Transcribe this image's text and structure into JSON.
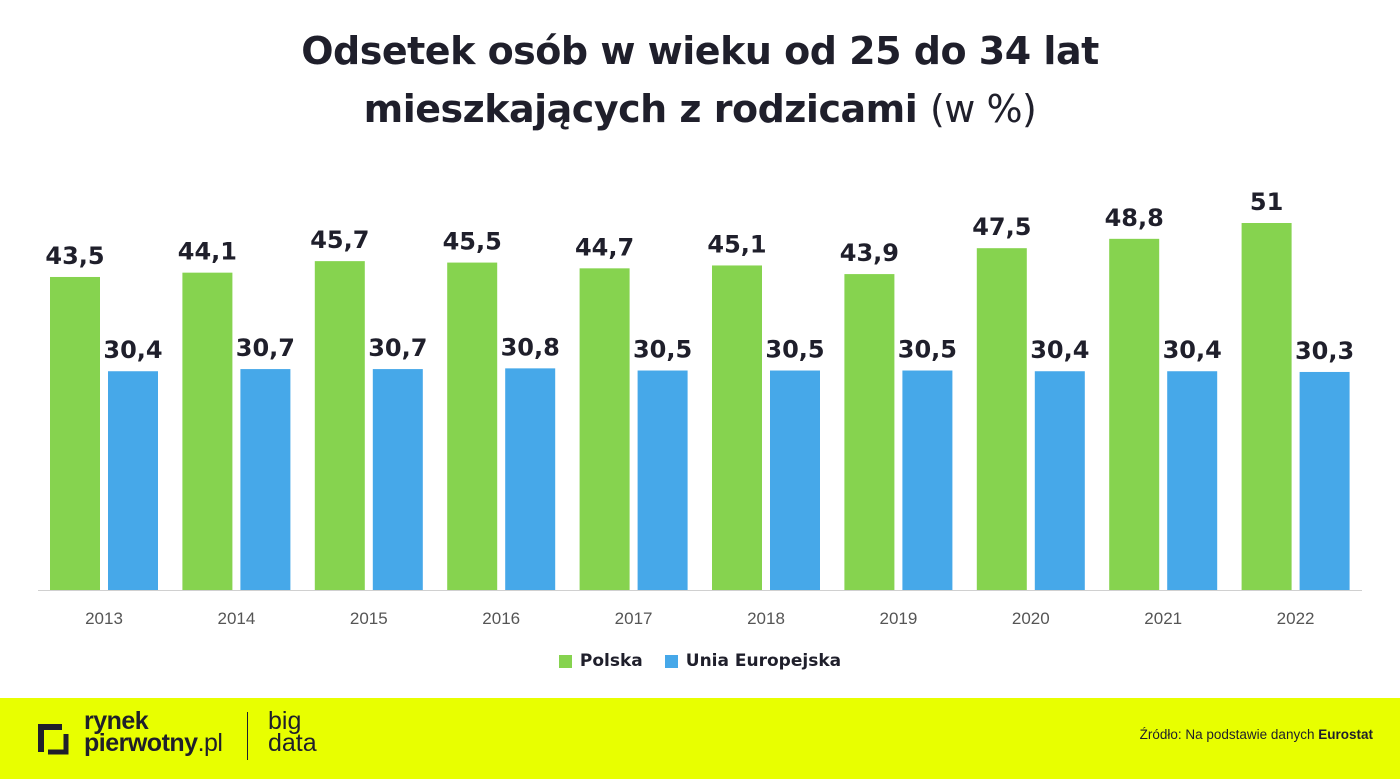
{
  "title": {
    "line1": "Odsetek osób w wieku od 25 do 34 lat",
    "line2": "mieszkających z rodzicami",
    "unit": "(w %)"
  },
  "chart_data": {
    "type": "bar",
    "categories": [
      "2013",
      "2014",
      "2015",
      "2016",
      "2017",
      "2018",
      "2019",
      "2020",
      "2021",
      "2022"
    ],
    "series": [
      {
        "name": "Polska",
        "color": "#86d34f",
        "values": [
          43.5,
          44.1,
          45.7,
          45.5,
          44.7,
          45.1,
          43.9,
          47.5,
          48.8,
          51
        ],
        "labels": [
          "43,5",
          "44,1",
          "45,7",
          "45,5",
          "44,7",
          "45,1",
          "43,9",
          "47,5",
          "48,8",
          "51"
        ]
      },
      {
        "name": "Unia Europejska",
        "color": "#46a8e9",
        "values": [
          30.4,
          30.7,
          30.7,
          30.8,
          30.5,
          30.5,
          30.5,
          30.4,
          30.4,
          30.3
        ],
        "labels": [
          "30,4",
          "30,7",
          "30,7",
          "30,8",
          "30,5",
          "30,5",
          "30,5",
          "30,4",
          "30,4",
          "30,3"
        ]
      }
    ],
    "ylim": [
      0,
      51
    ],
    "grid": false,
    "legend_position": "bottom-center"
  },
  "legend": [
    "Polska",
    "Unia Europejska"
  ],
  "footer": {
    "logo_line1": "rynek",
    "logo_line2_bold": "pierwotny",
    "logo_line2_suffix": ".pl",
    "logo_big": "big",
    "logo_data": "data",
    "source_prefix": "Źródło: Na podstawie danych",
    "source_name": "Eurostat",
    "background_color": "#e8ff00"
  }
}
